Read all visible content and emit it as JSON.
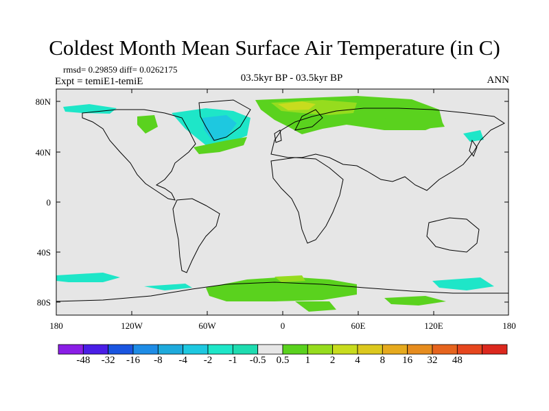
{
  "title": "Coldest Month Mean Surface Air Temperature (in C)",
  "stats": "rmsd= 0.29859  diff= 0.0262175",
  "expt": "Expt = temiE1-temiE",
  "period": "03.5kyr BP - 03.5kyr BP",
  "season": "ANN",
  "lat_ticks": [
    "80N",
    "40N",
    "0",
    "40S",
    "80S"
  ],
  "lon_ticks": [
    "180",
    "120W",
    "60W",
    "0",
    "60E",
    "120E",
    "180"
  ],
  "colorbar": {
    "colors": [
      "#8a1ee6",
      "#4a1ee6",
      "#1a55e0",
      "#1e8ce6",
      "#1eaadc",
      "#1ec8e0",
      "#1ee6c8",
      "#1edcb0",
      "#e6e6e6",
      "#5ad21e",
      "#96dc1e",
      "#c8dc1e",
      "#dcc81e",
      "#e6aa1e",
      "#e68c1e",
      "#e6641e",
      "#e6461e",
      "#dc281e"
    ],
    "labels": [
      "-48",
      "-32",
      "-16",
      "-8",
      "-4",
      "-2",
      "-1",
      "-0.5",
      "0.5",
      "1",
      "2",
      "4",
      "8",
      "16",
      "32",
      "48"
    ]
  },
  "chart_data": {
    "type": "heatmap",
    "title": "Coldest Month Mean Surface Air Temperature (in C)",
    "variable": "Coldest month mean surface air temperature difference",
    "units": "C",
    "rmsd": 0.29859,
    "diff": 0.0262175,
    "x_range": [
      -180,
      180
    ],
    "y_range": [
      -90,
      90
    ],
    "background_value_range": [
      -0.5,
      0.5
    ],
    "anomaly_regions": [
      {
        "region": "North Atlantic / Labrador Sea",
        "value": -1.5
      },
      {
        "region": "Greenland",
        "value": -1.5
      },
      {
        "region": "Northern Europe / Scandinavia",
        "value": 3
      },
      {
        "region": "Siberia",
        "value": 1.5
      },
      {
        "region": "Alaska",
        "value": -0.8
      },
      {
        "region": "Southern Ocean",
        "value": 0.8
      },
      {
        "region": "Antarctica",
        "value": 0.8
      }
    ]
  }
}
